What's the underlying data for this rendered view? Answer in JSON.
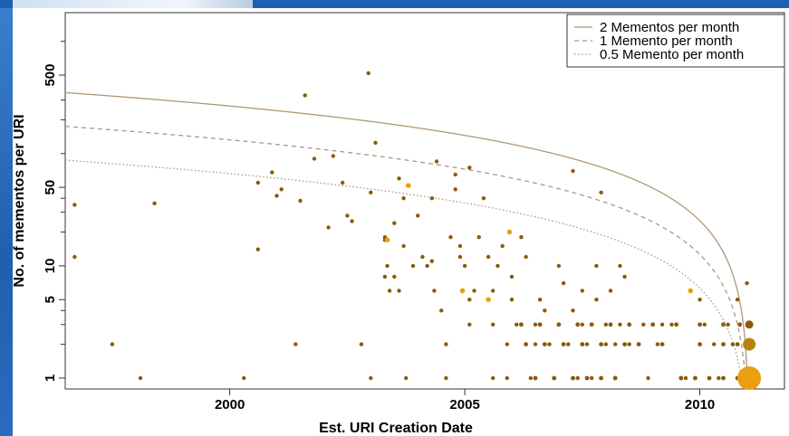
{
  "chart_data": {
    "type": "scatter",
    "title": "",
    "xlabel": "Est. URI Creation Date",
    "ylabel": "No. of mementos per URI",
    "y_scale": "log",
    "xlim": [
      1996.5,
      2011.8
    ],
    "ylim": [
      0.8,
      1800
    ],
    "x_ticks": [
      2000,
      2005,
      2010
    ],
    "x_tick_labels": [
      "2000",
      "2005",
      "2010"
    ],
    "y_ticks": [
      1,
      5,
      10,
      50,
      500
    ],
    "y_tick_labels": [
      "1",
      "5",
      "10",
      "50",
      "500"
    ],
    "grid": false,
    "legend_position": "top-right",
    "colors": {
      "point": "#8b5a0a",
      "point_highlight": "#e8a010",
      "curve": "#b09878"
    },
    "reference_lines": [
      {
        "name": "2 Mementos per month",
        "rate_per_month": 2,
        "style": "solid"
      },
      {
        "name": "1 Memento per month",
        "rate_per_month": 1,
        "style": "dashed"
      },
      {
        "name": "0.5 Memento per month",
        "rate_per_month": 0.5,
        "style": "dotted"
      }
    ],
    "points": [
      [
        1996.7,
        35
      ],
      [
        1996.7,
        12
      ],
      [
        1997.5,
        2
      ],
      [
        1998.1,
        1
      ],
      [
        1998.4,
        36
      ],
      [
        2000.3,
        1
      ],
      [
        2000.6,
        14
      ],
      [
        2000.6,
        55
      ],
      [
        2000.9,
        68
      ],
      [
        2001.0,
        42
      ],
      [
        2001.1,
        48
      ],
      [
        2001.4,
        2
      ],
      [
        2001.6,
        330
      ],
      [
        2001.5,
        38
      ],
      [
        2001.8,
        90
      ],
      [
        2002.1,
        22
      ],
      [
        2002.2,
        95
      ],
      [
        2002.4,
        55
      ],
      [
        2002.6,
        25
      ],
      [
        2002.5,
        28
      ],
      [
        2002.8,
        2
      ],
      [
        2003.0,
        1
      ],
      [
        2003.0,
        45
      ],
      [
        2003.1,
        125
      ],
      [
        2002.95,
        520
      ],
      [
        2003.3,
        18
      ],
      [
        2003.3,
        17
      ],
      [
        2003.35,
        10
      ],
      [
        2003.3,
        8
      ],
      [
        2003.4,
        6
      ],
      [
        2003.5,
        8
      ],
      [
        2003.5,
        24
      ],
      [
        2003.6,
        60
      ],
      [
        2003.6,
        6
      ],
      [
        2003.7,
        40
      ],
      [
        2003.75,
        1
      ],
      [
        2003.7,
        15
      ],
      [
        2003.8,
        52
      ],
      [
        2003.9,
        10
      ],
      [
        2004.0,
        28
      ],
      [
        2004.1,
        12
      ],
      [
        2004.2,
        10
      ],
      [
        2004.3,
        11
      ],
      [
        2004.35,
        6
      ],
      [
        2004.3,
        40
      ],
      [
        2004.4,
        85
      ],
      [
        2004.5,
        4
      ],
      [
        2004.6,
        2
      ],
      [
        2004.6,
        1
      ],
      [
        2004.7,
        18
      ],
      [
        2004.8,
        48
      ],
      [
        2004.8,
        65
      ],
      [
        2004.9,
        15
      ],
      [
        2004.9,
        12
      ],
      [
        2005.0,
        10
      ],
      [
        2005.1,
        3
      ],
      [
        2005.1,
        5
      ],
      [
        2005.1,
        75
      ],
      [
        2005.2,
        6
      ],
      [
        2005.3,
        18
      ],
      [
        2005.4,
        40
      ],
      [
        2005.5,
        12
      ],
      [
        2005.6,
        1
      ],
      [
        2005.6,
        3
      ],
      [
        2005.6,
        6
      ],
      [
        2005.7,
        10
      ],
      [
        2005.8,
        15
      ],
      [
        2005.9,
        1
      ],
      [
        2005.9,
        2
      ],
      [
        2006.0,
        5
      ],
      [
        2006.0,
        8
      ],
      [
        2006.1,
        3
      ],
      [
        2006.2,
        18
      ],
      [
        2006.3,
        12
      ],
      [
        2006.4,
        1
      ],
      [
        2006.5,
        2
      ],
      [
        2006.5,
        3
      ],
      [
        2006.6,
        5
      ],
      [
        2006.7,
        4
      ],
      [
        2006.8,
        2
      ],
      [
        2006.9,
        1
      ],
      [
        2007.0,
        3
      ],
      [
        2007.0,
        10
      ],
      [
        2007.1,
        7
      ],
      [
        2007.2,
        2
      ],
      [
        2007.3,
        4
      ],
      [
        2007.3,
        70
      ],
      [
        2007.4,
        1
      ],
      [
        2007.5,
        3
      ],
      [
        2007.5,
        6
      ],
      [
        2007.6,
        2
      ],
      [
        2007.7,
        1
      ],
      [
        2007.7,
        3
      ],
      [
        2007.8,
        5
      ],
      [
        2007.8,
        10
      ],
      [
        2007.9,
        45
      ],
      [
        2008.0,
        2
      ],
      [
        2008.0,
        3
      ],
      [
        2008.1,
        6
      ],
      [
        2008.2,
        1
      ],
      [
        2008.2,
        2
      ],
      [
        2008.3,
        3
      ],
      [
        2008.3,
        10
      ],
      [
        2008.4,
        8
      ],
      [
        2008.5,
        2
      ],
      [
        2008.8,
        3
      ],
      [
        2008.9,
        1
      ],
      [
        2009.1,
        2
      ],
      [
        2009.2,
        3
      ],
      [
        2009.4,
        3
      ],
      [
        2009.6,
        1
      ],
      [
        2009.7,
        1
      ],
      [
        2009.9,
        1
      ],
      [
        2010.0,
        5
      ],
      [
        2010.1,
        3
      ],
      [
        2010.3,
        2
      ],
      [
        2010.4,
        1
      ],
      [
        2010.6,
        3
      ],
      [
        2010.7,
        2
      ],
      [
        2010.8,
        5
      ],
      [
        2011.0,
        7
      ],
      [
        2011.05,
        1
      ],
      [
        2011.05,
        2
      ],
      [
        2011.05,
        3
      ]
    ],
    "highlight_points": [
      [
        2003.35,
        17
      ],
      [
        2003.8,
        52
      ],
      [
        2004.95,
        6
      ],
      [
        2005.5,
        5
      ],
      [
        2005.95,
        20
      ],
      [
        2009.8,
        6
      ]
    ],
    "large_points": [
      {
        "x": 2011.05,
        "y": 1,
        "size": "large"
      },
      {
        "x": 2011.05,
        "y": 2,
        "size": "medium"
      },
      {
        "x": 2011.05,
        "y": 3,
        "size": "small"
      }
    ]
  }
}
